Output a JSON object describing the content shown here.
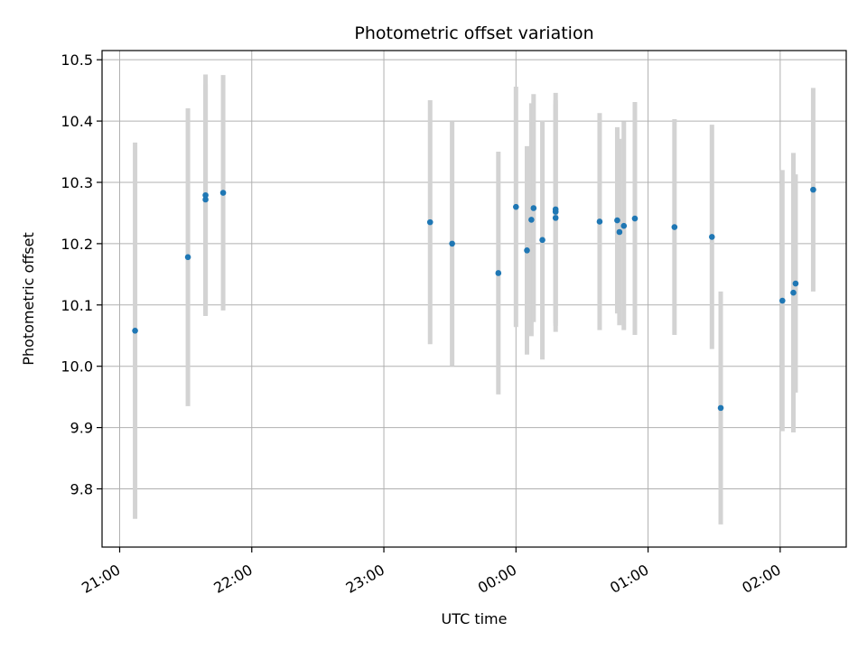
{
  "chart_data": {
    "type": "scatter",
    "title": "Photometric offset variation",
    "xlabel": "UTC time",
    "ylabel": "Photometric offset",
    "grid": true,
    "error_bar_color": "#d3d3d3",
    "point_color": "#1f77b4",
    "x_ticks": [
      "21:00",
      "22:00",
      "23:00",
      "00:00",
      "01:00",
      "02:00"
    ],
    "x_tick_hours": [
      21,
      22,
      23,
      24,
      25,
      26
    ],
    "y_ticks": [
      "9.8",
      "9.9",
      "10.0",
      "10.1",
      "10.2",
      "10.3",
      "10.4",
      "10.5"
    ],
    "y_tick_values": [
      9.8,
      9.9,
      10.0,
      10.1,
      10.2,
      10.3,
      10.4,
      10.5
    ],
    "xlim": [
      "20:52",
      "02:30"
    ],
    "ylim": [
      9.705,
      10.515
    ],
    "points": [
      {
        "t": "21:07",
        "y": 10.058,
        "err": 0.307
      },
      {
        "t": "21:31",
        "y": 10.178,
        "err": 0.243
      },
      {
        "t": "21:39",
        "y": 10.279,
        "err": 0.197
      },
      {
        "t": "21:39",
        "y": 10.272,
        "err": 0.188
      },
      {
        "t": "21:47",
        "y": 10.283,
        "err": 0.192
      },
      {
        "t": "23:21",
        "y": 10.235,
        "err": 0.199
      },
      {
        "t": "23:31",
        "y": 10.2,
        "err": 0.2
      },
      {
        "t": "23:52",
        "y": 10.152,
        "err": 0.198
      },
      {
        "t": "00:00",
        "y": 10.26,
        "err": 0.196
      },
      {
        "t": "00:05",
        "y": 10.189,
        "err": 0.17
      },
      {
        "t": "00:07",
        "y": 10.239,
        "err": 0.19
      },
      {
        "t": "00:08",
        "y": 10.258,
        "err": 0.186
      },
      {
        "t": "00:12",
        "y": 10.206,
        "err": 0.195
      },
      {
        "t": "00:18",
        "y": 10.256,
        "err": 0.19
      },
      {
        "t": "00:18",
        "y": 10.242,
        "err": 0.186
      },
      {
        "t": "00:18",
        "y": 10.252,
        "err": 0.182
      },
      {
        "t": "00:38",
        "y": 10.236,
        "err": 0.177
      },
      {
        "t": "00:46",
        "y": 10.238,
        "err": 0.152
      },
      {
        "t": "00:47",
        "y": 10.219,
        "err": 0.152
      },
      {
        "t": "00:49",
        "y": 10.229,
        "err": 0.17
      },
      {
        "t": "00:54",
        "y": 10.241,
        "err": 0.19
      },
      {
        "t": "01:12",
        "y": 10.227,
        "err": 0.176
      },
      {
        "t": "01:29",
        "y": 10.211,
        "err": 0.183
      },
      {
        "t": "01:33",
        "y": 9.932,
        "err": 0.19
      },
      {
        "t": "02:01",
        "y": 10.107,
        "err": 0.213
      },
      {
        "t": "02:06",
        "y": 10.12,
        "err": 0.228
      },
      {
        "t": "02:07",
        "y": 10.135,
        "err": 0.178
      },
      {
        "t": "02:15",
        "y": 10.288,
        "err": 0.166
      }
    ]
  }
}
